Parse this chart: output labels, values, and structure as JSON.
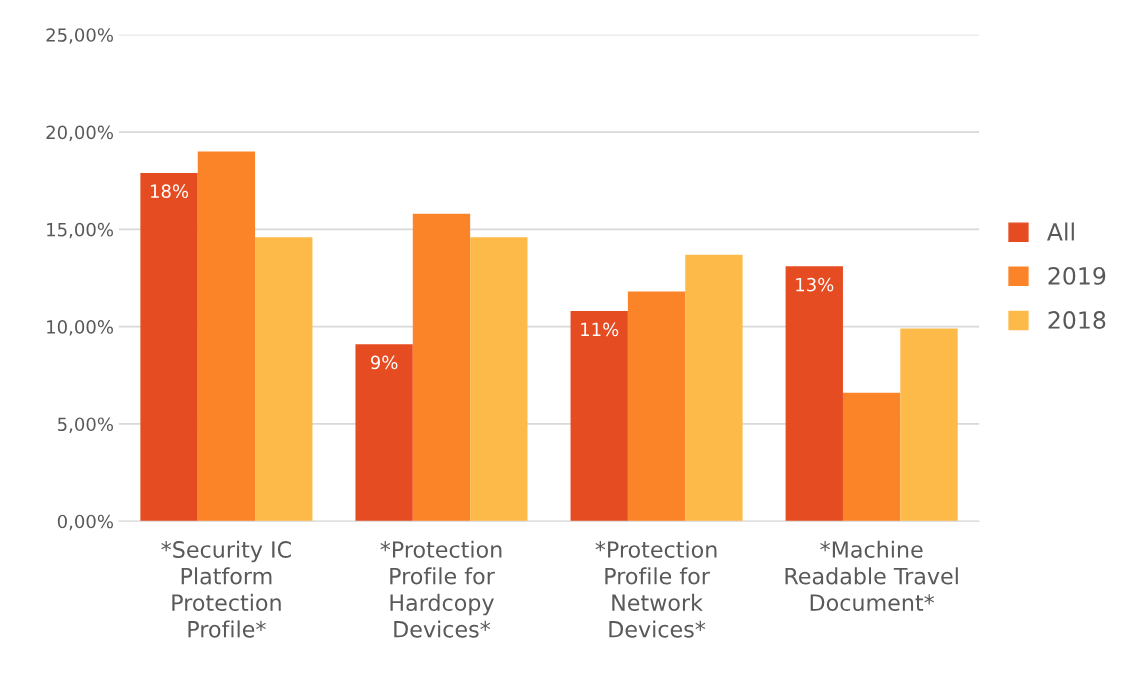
{
  "chart_data": {
    "type": "bar",
    "categories": [
      "*Security IC Platform Protection Profile*",
      "*Protection Profile for Hardcopy Devices*",
      "*Protection Profile for Network Devices*",
      "*Machine Readable Travel Document*"
    ],
    "series": [
      {
        "name": "All",
        "color": "#e64c22",
        "values": [
          17.9,
          9.1,
          10.8,
          13.1
        ],
        "value_labels": [
          "18%",
          "9%",
          "11%",
          "13%"
        ]
      },
      {
        "name": "2019",
        "color": "#fc8428",
        "values": [
          19.0,
          15.8,
          11.8,
          6.6
        ]
      },
      {
        "name": "2018",
        "color": "#feba49",
        "values": [
          14.6,
          14.6,
          13.7,
          9.9
        ]
      }
    ],
    "ylim": [
      0,
      25
    ],
    "yticks": [
      {
        "value": 0,
        "label": "0,00%"
      },
      {
        "value": 5,
        "label": "5,00%"
      },
      {
        "value": 10,
        "label": "10,00%"
      },
      {
        "value": 15,
        "label": "15,00%"
      },
      {
        "value": 20,
        "label": "20,00%"
      },
      {
        "value": 25,
        "label": "25,00%"
      }
    ],
    "grid": "y",
    "legend": "right"
  }
}
